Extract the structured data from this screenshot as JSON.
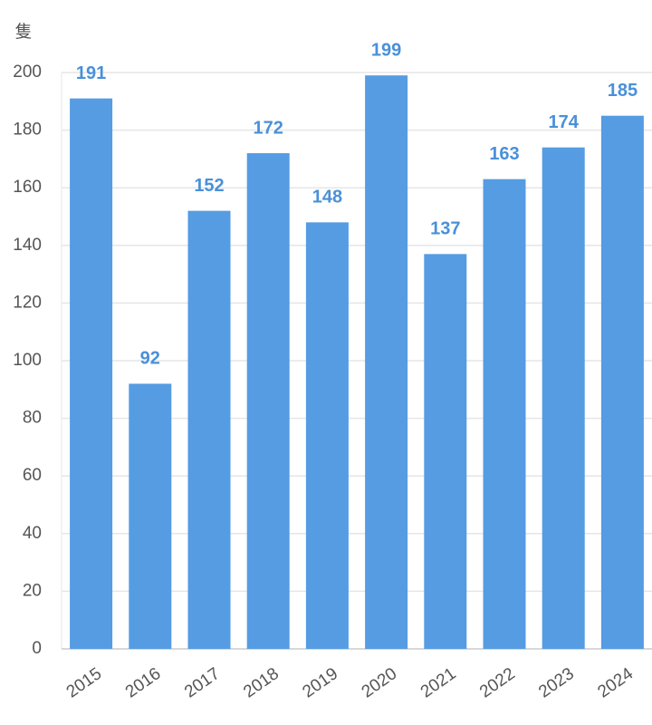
{
  "chart_data": {
    "type": "bar",
    "y_label": "隻",
    "categories": [
      "2015",
      "2016",
      "2017",
      "2018",
      "2019",
      "2020",
      "2021",
      "2022",
      "2023",
      "2024"
    ],
    "values": [
      191,
      92,
      152,
      172,
      148,
      199,
      137,
      163,
      174,
      185
    ],
    "color": "#559ce3",
    "ylim": [
      0,
      200
    ],
    "yticks": [
      0,
      20,
      40,
      60,
      80,
      100,
      120,
      140,
      160,
      180,
      200
    ],
    "grid": true
  }
}
